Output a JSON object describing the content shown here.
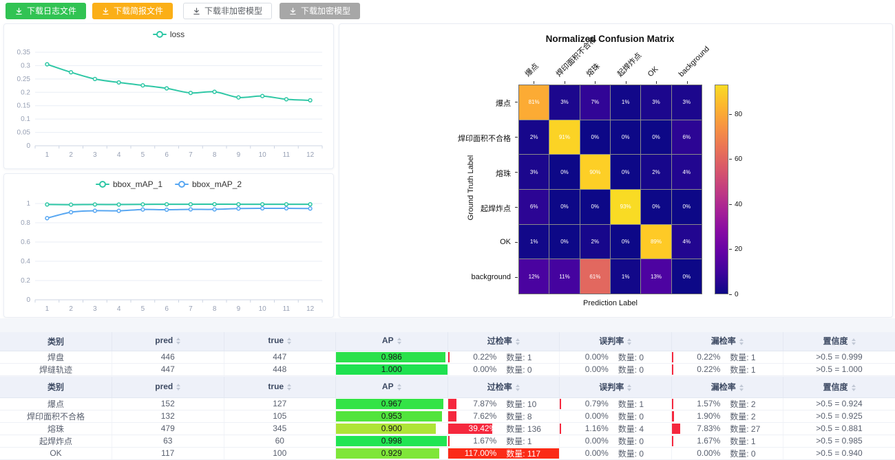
{
  "buttons": [
    {
      "label": "下载日志文件",
      "color": "#31c353"
    },
    {
      "label": "下载简报文件",
      "color": "#fbaf17"
    },
    {
      "label": "下载非加密模型",
      "color": "#ffffff"
    },
    {
      "label": "下载加密模型",
      "color": "#a7a7a7"
    }
  ],
  "chart_data": [
    {
      "type": "line",
      "title": "",
      "legend_position": "top",
      "grid": true,
      "x": [
        "1",
        "2",
        "3",
        "4",
        "5",
        "6",
        "7",
        "8",
        "9",
        "10",
        "11",
        "12"
      ],
      "ylim": [
        0,
        0.35
      ],
      "ytick_labels": [
        "0",
        "0.05",
        "0.1",
        "0.15",
        "0.2",
        "0.25",
        "0.3",
        "0.35"
      ],
      "series": [
        {
          "name": "loss",
          "color": "#2ec7a5",
          "values": [
            0.305,
            0.275,
            0.25,
            0.237,
            0.226,
            0.215,
            0.198,
            0.202,
            0.181,
            0.186,
            0.174,
            0.17
          ]
        }
      ]
    },
    {
      "type": "line",
      "title": "",
      "legend_position": "top",
      "grid": true,
      "x": [
        "1",
        "2",
        "3",
        "4",
        "5",
        "6",
        "7",
        "8",
        "9",
        "10",
        "11",
        "12"
      ],
      "ylim": [
        0,
        1
      ],
      "ytick_labels": [
        "0",
        "0.2",
        "0.4",
        "0.6",
        "0.8",
        "1"
      ],
      "series": [
        {
          "name": "bbox_mAP_1",
          "color": "#2ec7a5",
          "values": [
            0.99,
            0.988,
            0.99,
            0.989,
            0.991,
            0.992,
            0.992,
            0.993,
            0.992,
            0.992,
            0.992,
            0.992
          ]
        },
        {
          "name": "bbox_mAP_2",
          "color": "#58a7f2",
          "values": [
            0.848,
            0.91,
            0.925,
            0.924,
            0.938,
            0.936,
            0.939,
            0.939,
            0.948,
            0.95,
            0.95,
            0.948
          ]
        }
      ]
    },
    {
      "type": "heatmap",
      "title": "Normalized Confusion Matrix",
      "xlabel": "Prediction Label",
      "ylabel": "Ground Truth Label",
      "labels": [
        "爆点",
        "焊印面积不合格",
        "熔珠",
        "起焊炸点",
        "OK",
        "background"
      ],
      "values_percent": [
        [
          81,
          3,
          7,
          1,
          3,
          3
        ],
        [
          2,
          91,
          0,
          0,
          0,
          6
        ],
        [
          3,
          0,
          90,
          0,
          2,
          4
        ],
        [
          6,
          0,
          0,
          93,
          0,
          0
        ],
        [
          1,
          0,
          2,
          0,
          89,
          4
        ],
        [
          12,
          11,
          61,
          1,
          13,
          0
        ]
      ],
      "colormap": "plasma",
      "colorbar_ticks": [
        0,
        20,
        40,
        60,
        80
      ],
      "colorbar_max": 93
    }
  ],
  "tables": [
    {
      "headers": [
        {
          "label": "类别",
          "sortable": false
        },
        {
          "label": "pred",
          "sortable": true
        },
        {
          "label": "true",
          "sortable": true
        },
        {
          "label": "AP",
          "sortable": true
        },
        {
          "label": "过检率",
          "sortable": true
        },
        {
          "label": "误判率",
          "sortable": true
        },
        {
          "label": "漏检率",
          "sortable": true
        },
        {
          "label": "置信度",
          "sortable": true
        }
      ],
      "rows": [
        {
          "category": "焊盘",
          "pred": "446",
          "true": "447",
          "ap": {
            "text": "0.986",
            "percent": 98.6,
            "color": "#2be14b"
          },
          "rates": [
            {
              "pct": "0.22%",
              "count": "数量: 1",
              "bar": 0.22
            },
            {
              "pct": "0.00%",
              "count": "数量: 0",
              "bar": 0
            },
            {
              "pct": "0.22%",
              "count": "数量: 1",
              "bar": 0.22
            }
          ],
          "confidence": ">0.5 = 0.999"
        },
        {
          "category": "焊缝轨迹",
          "pred": "447",
          "true": "448",
          "ap": {
            "text": "1.000",
            "percent": 100,
            "color": "#1fe150"
          },
          "rates": [
            {
              "pct": "0.00%",
              "count": "数量: 0",
              "bar": 0
            },
            {
              "pct": "0.00%",
              "count": "数量: 0",
              "bar": 0
            },
            {
              "pct": "0.22%",
              "count": "数量: 1",
              "bar": 0.22
            }
          ],
          "confidence": ">0.5 = 1.000"
        }
      ]
    },
    {
      "headers": [
        {
          "label": "类别",
          "sortable": false
        },
        {
          "label": "pred",
          "sortable": true
        },
        {
          "label": "true",
          "sortable": true
        },
        {
          "label": "AP",
          "sortable": true
        },
        {
          "label": "过检率",
          "sortable": true
        },
        {
          "label": "误判率",
          "sortable": true
        },
        {
          "label": "漏检率",
          "sortable": true
        },
        {
          "label": "置信度",
          "sortable": true
        }
      ],
      "rows": [
        {
          "category": "爆点",
          "pred": "152",
          "true": "127",
          "ap": {
            "text": "0.967",
            "percent": 96.7,
            "color": "#33e346"
          },
          "rates": [
            {
              "pct": "7.87%",
              "count": "数量: 10",
              "bar": 7.87
            },
            {
              "pct": "0.79%",
              "count": "数量: 1",
              "bar": 0.79
            },
            {
              "pct": "1.57%",
              "count": "数量: 2",
              "bar": 1.57
            }
          ],
          "confidence": ">0.5 = 0.924"
        },
        {
          "category": "焊印面积不合格",
          "pred": "132",
          "true": "105",
          "ap": {
            "text": "0.953",
            "percent": 95.3,
            "color": "#52e43c"
          },
          "rates": [
            {
              "pct": "7.62%",
              "count": "数量: 8",
              "bar": 7.62
            },
            {
              "pct": "0.00%",
              "count": "数量: 0",
              "bar": 0
            },
            {
              "pct": "1.90%",
              "count": "数量: 2",
              "bar": 1.9
            }
          ],
          "confidence": ">0.5 = 0.925"
        },
        {
          "category": "熔珠",
          "pred": "479",
          "true": "345",
          "ap": {
            "text": "0.900",
            "percent": 90,
            "color": "#aee437"
          },
          "rates": [
            {
              "pct": "39.42%",
              "count": "数量: 136",
              "bar": 39.42,
              "pct_white": true
            },
            {
              "pct": "1.16%",
              "count": "数量: 4",
              "bar": 1.16
            },
            {
              "pct": "7.83%",
              "count": "数量: 27",
              "bar": 7.83
            }
          ],
          "confidence": ">0.5 = 0.881"
        },
        {
          "category": "起焊炸点",
          "pred": "63",
          "true": "60",
          "ap": {
            "text": "0.998",
            "percent": 99.8,
            "color": "#21e553"
          },
          "rates": [
            {
              "pct": "1.67%",
              "count": "数量: 1",
              "bar": 1.67
            },
            {
              "pct": "0.00%",
              "count": "数量: 0",
              "bar": 0
            },
            {
              "pct": "1.67%",
              "count": "数量: 1",
              "bar": 1.67
            }
          ],
          "confidence": ">0.5 = 0.985"
        },
        {
          "category": "OK",
          "pred": "117",
          "true": "100",
          "ap": {
            "text": "0.929",
            "percent": 92.9,
            "color": "#7fe639"
          },
          "rates": [
            {
              "pct": "117.00%",
              "count": "数量: 117",
              "bar": 117,
              "pct_white": true,
              "count_white": true,
              "bar_color": "#fb2b17"
            },
            {
              "pct": "0.00%",
              "count": "数量: 0",
              "bar": 0
            },
            {
              "pct": "0.00%",
              "count": "数量: 0",
              "bar": 0
            }
          ],
          "confidence": ">0.5 = 0.940"
        }
      ]
    }
  ]
}
